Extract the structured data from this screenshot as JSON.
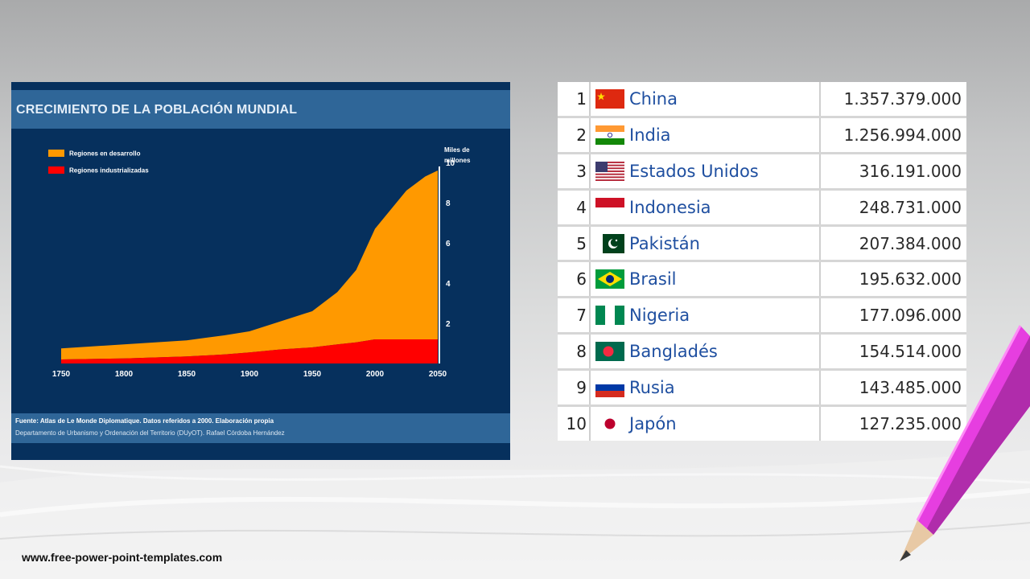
{
  "chart_data": {
    "type": "area",
    "title": "CRECIMIENTO DE LA POBLACIÓN MUNDIAL",
    "ylabel": [
      "Miles de",
      "millones"
    ],
    "x": [
      1750,
      1800,
      1850,
      1880,
      1900,
      1925,
      1950,
      1970,
      1985,
      2000,
      2025,
      2040,
      2050
    ],
    "xticks": [
      "1750",
      "1800",
      "1850",
      "1900",
      "1950",
      "2000",
      "2050"
    ],
    "yticks": [
      "2",
      "4",
      "6",
      "8",
      "10"
    ],
    "ylim": [
      0,
      10
    ],
    "xlim": [
      1750,
      2050
    ],
    "legend_position": "top-left",
    "series": [
      {
        "name": "Regiones industrializadas",
        "color": "#ff0000",
        "values": [
          0.2,
          0.25,
          0.35,
          0.45,
          0.55,
          0.7,
          0.8,
          0.95,
          1.05,
          1.2,
          1.2,
          1.2,
          1.2
        ]
      },
      {
        "name": "Regiones en desarrollo",
        "color": "#ff9900",
        "values": [
          0.55,
          0.7,
          0.8,
          0.95,
          1.05,
          1.4,
          1.8,
          2.6,
          3.6,
          5.5,
          7.4,
          8.1,
          8.4
        ]
      }
    ],
    "source_line1": "Fuente: Atlas de Le Monde Diplomatique. Datos referidos a 2000. Elaboración propia",
    "source_line2": "Departamento de Urbanismo y Ordenación del Territorio (DUyOT). Rafael Córdoba Hernández"
  },
  "ranking": [
    {
      "rank": "1",
      "flag": "cn-flag-icon",
      "country": "China",
      "population": "1.357.379.000"
    },
    {
      "rank": "2",
      "flag": "in-flag-icon",
      "country": "India",
      "population": "1.256.994.000"
    },
    {
      "rank": "3",
      "flag": "us-flag-icon",
      "country": "Estados Unidos",
      "population": "316.191.000"
    },
    {
      "rank": "4",
      "flag": "id-flag-icon",
      "country": "Indonesia",
      "population": "248.731.000"
    },
    {
      "rank": "5",
      "flag": "pk-flag-icon",
      "country": "Pakistán",
      "population": "207.384.000"
    },
    {
      "rank": "6",
      "flag": "br-flag-icon",
      "country": "Brasil",
      "population": "195.632.000"
    },
    {
      "rank": "7",
      "flag": "ng-flag-icon",
      "country": "Nigeria",
      "population": "177.096.000"
    },
    {
      "rank": "8",
      "flag": "bd-flag-icon",
      "country": "Bangladés",
      "population": "154.514.000"
    },
    {
      "rank": "9",
      "flag": "ru-flag-icon",
      "country": "Rusia",
      "population": "143.485.000"
    },
    {
      "rank": "10",
      "flag": "jp-flag-icon",
      "country": "Japón",
      "population": "127.235.000"
    }
  ],
  "footer": {
    "url": "www.free-power-point-templates.com"
  }
}
